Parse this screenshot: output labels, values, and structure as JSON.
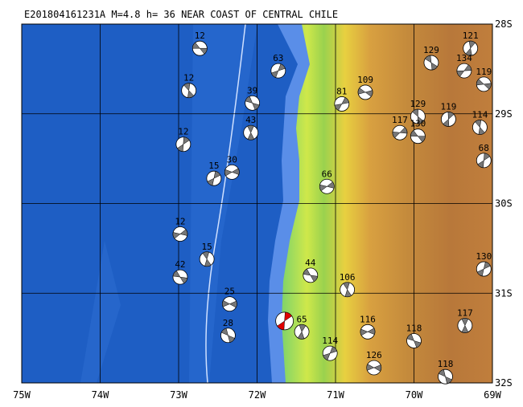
{
  "title": "E201804161231A  M=4.8  h= 36  NEAR COAST OF CENTRAL CHILE",
  "xticks": [
    {
      "value": -75,
      "label": "75W"
    },
    {
      "value": -74,
      "label": "74W"
    },
    {
      "value": -73,
      "label": "73W"
    },
    {
      "value": -72,
      "label": "72W"
    },
    {
      "value": -71,
      "label": "71W"
    },
    {
      "value": -70,
      "label": "70W"
    },
    {
      "value": -69,
      "label": "69W"
    }
  ],
  "yticks": [
    {
      "value": -28,
      "label": "28S"
    },
    {
      "value": -29,
      "label": "29S"
    },
    {
      "value": -30,
      "label": "30S"
    },
    {
      "value": -31,
      "label": "31S"
    },
    {
      "value": -32,
      "label": "32S"
    }
  ],
  "xlim": [
    -75,
    -69
  ],
  "ylim": [
    -32,
    -28
  ],
  "main_event": {
    "lon": -71.65,
    "lat": -31.31
  },
  "events": [
    {
      "label": 12,
      "lon": -72.73,
      "lat": -28.27
    },
    {
      "label": 12,
      "lon": -72.87,
      "lat": -28.74
    },
    {
      "label": 12,
      "lon": -72.94,
      "lat": -29.34
    },
    {
      "label": 12,
      "lon": -72.98,
      "lat": -30.34
    },
    {
      "label": 42,
      "lon": -72.98,
      "lat": -30.82
    },
    {
      "label": 15,
      "lon": -72.64,
      "lat": -30.62
    },
    {
      "label": 15,
      "lon": -72.55,
      "lat": -29.72
    },
    {
      "label": 30,
      "lon": -72.32,
      "lat": -29.65
    },
    {
      "label": 39,
      "lon": -72.06,
      "lat": -28.88
    },
    {
      "label": 43,
      "lon": -72.08,
      "lat": -29.21
    },
    {
      "label": 63,
      "lon": -71.73,
      "lat": -28.52
    },
    {
      "label": 25,
      "lon": -72.35,
      "lat": -31.12
    },
    {
      "label": 28,
      "lon": -72.37,
      "lat": -31.47
    },
    {
      "label": 65,
      "lon": -71.43,
      "lat": -31.43
    },
    {
      "label": 81,
      "lon": -70.92,
      "lat": -28.89
    },
    {
      "label": 109,
      "lon": -70.62,
      "lat": -28.76
    },
    {
      "label": 129,
      "lon": -69.78,
      "lat": -28.43
    },
    {
      "label": 121,
      "lon": -69.28,
      "lat": -28.27
    },
    {
      "label": 134,
      "lon": -69.36,
      "lat": -28.52
    },
    {
      "label": 119,
      "lon": -69.11,
      "lat": -28.67
    },
    {
      "label": 129,
      "lon": -69.95,
      "lat": -29.03
    },
    {
      "label": 119,
      "lon": -69.56,
      "lat": -29.06
    },
    {
      "label": 117,
      "lon": -70.18,
      "lat": -29.21
    },
    {
      "label": 130,
      "lon": -69.95,
      "lat": -29.25
    },
    {
      "label": 114,
      "lon": -69.16,
      "lat": -29.15
    },
    {
      "label": 68,
      "lon": -69.11,
      "lat": -29.52
    },
    {
      "label": 66,
      "lon": -71.11,
      "lat": -29.81
    },
    {
      "label": 44,
      "lon": -71.32,
      "lat": -30.8
    },
    {
      "label": 106,
      "lon": -70.85,
      "lat": -30.96
    },
    {
      "label": 130,
      "lon": -69.11,
      "lat": -30.73
    },
    {
      "label": 116,
      "lon": -70.59,
      "lat": -31.43
    },
    {
      "label": 118,
      "lon": -70.0,
      "lat": -31.53
    },
    {
      "label": 117,
      "lon": -69.35,
      "lat": -31.36
    },
    {
      "label": 114,
      "lon": -71.07,
      "lat": -31.67
    },
    {
      "label": 126,
      "lon": -70.51,
      "lat": -31.83
    },
    {
      "label": 118,
      "lon": -69.6,
      "lat": -31.93
    }
  ]
}
